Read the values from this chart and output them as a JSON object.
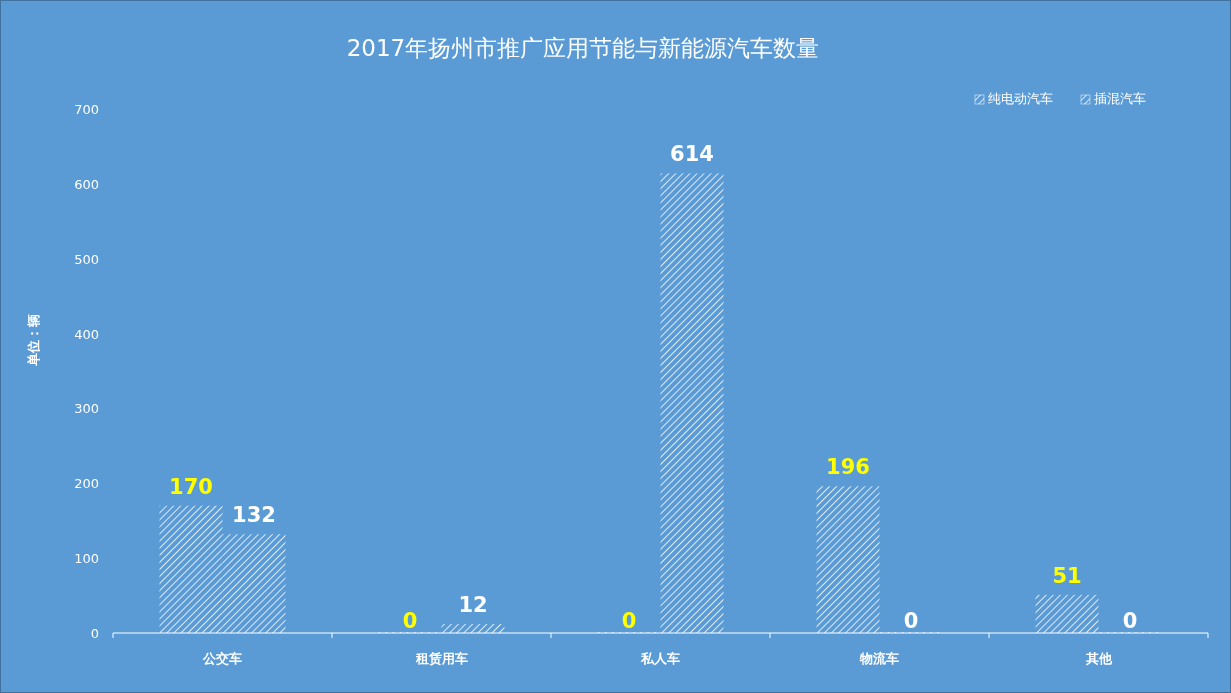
{
  "chart_data": {
    "type": "bar",
    "title": "2017年扬州市推广应用节能与新能源汽车数量",
    "ylabel": "单位：辆",
    "categories": [
      "公交车",
      "租赁用车",
      "私人车",
      "物流车",
      "其他"
    ],
    "series": [
      {
        "name": "纯电动汽车",
        "color": "#ffffff",
        "values": [
          170,
          0,
          0,
          196,
          51
        ]
      },
      {
        "name": "插混汽车",
        "color": "#ffffff",
        "values": [
          132,
          12,
          614,
          0,
          0
        ]
      }
    ],
    "ylim": [
      0,
      700
    ],
    "yticks": [
      0,
      100,
      200,
      300,
      400,
      500,
      600,
      700
    ],
    "data_labels": true,
    "legend": "top right",
    "grid": false
  }
}
